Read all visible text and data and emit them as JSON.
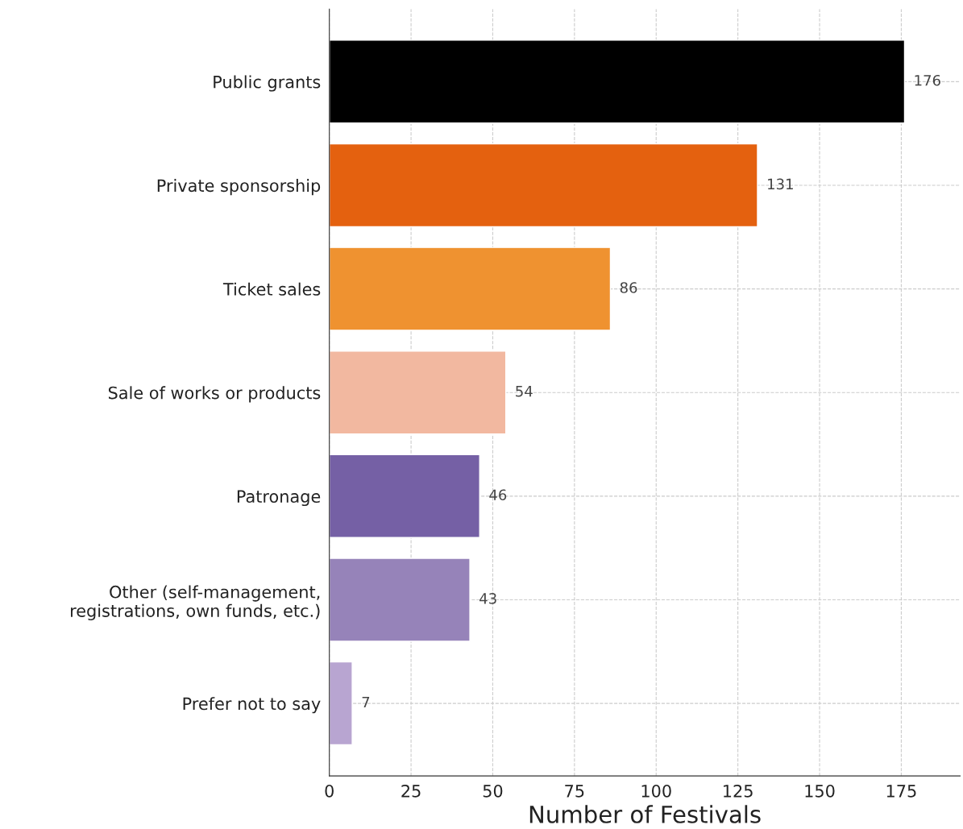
{
  "chart_data": {
    "type": "bar",
    "orientation": "horizontal",
    "xlabel": "Number of Festivals",
    "categories": [
      "Public grants",
      "Private sponsorship",
      "Ticket sales",
      "Sale of works or products",
      "Patronage",
      "Other (self-management,\nregistrations, own funds, etc.)",
      "Prefer not to say"
    ],
    "values": [
      176,
      131,
      86,
      54,
      46,
      43,
      7
    ],
    "colors": [
      "#000000",
      "#e4610f",
      "#ef9230",
      "#f2b8a0",
      "#7560a5",
      "#9683b9",
      "#b8a5d1"
    ],
    "xlim": [
      0,
      193
    ],
    "xticks": [
      0,
      25,
      50,
      75,
      100,
      125,
      150,
      175
    ],
    "grid": true,
    "data_labels": true
  }
}
